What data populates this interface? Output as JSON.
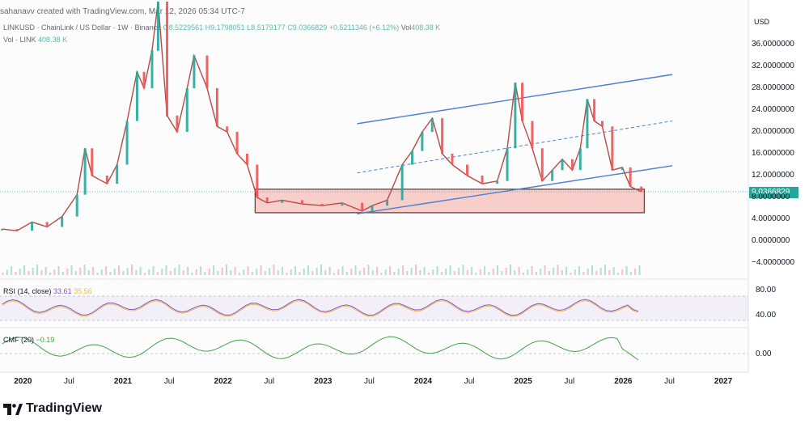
{
  "header": {
    "created": "sahanavv created with TradingView.com, Mar 12, 2026 05:34 UTC-7",
    "symbol_line": "LINKUSD · ChainLink / US Dollar · 1W · Binance",
    "ohlc": "O8.5229561  H9.1798051  L8.5179177  C9.0366829  +0.5211346 (+6.12%)",
    "vol_line_label": "Vol",
    "vol_line_value": "408.38 K",
    "vol_label": "Vol · LINK",
    "vol_value": "408.38 K"
  },
  "axis_currency": "USD",
  "current_price_label": "9.0366829",
  "rsi": {
    "label": "RSI (14, close)",
    "value1": "33.61",
    "value2": "35.56",
    "ticks": [
      "80.00",
      "40.00"
    ]
  },
  "cmf": {
    "label": "CMF (20)",
    "value": "−0.19",
    "ticks": [
      "0.00"
    ]
  },
  "brand": "TradingView",
  "colors": {
    "up": "#26a69a",
    "down": "#ef5350",
    "channel": "#4a7fd4",
    "zone_fill": "#f7c6c1",
    "zone_border": "#5a1a1a",
    "rsi": "#7e57c2",
    "rsi_ma": "#f0b94c",
    "cmf": "#43a047"
  },
  "chart_data": {
    "type": "line",
    "title": "LINKUSD · ChainLink / US Dollar · 1W · Binance",
    "y_axis_ticks": [
      "36.0000000",
      "32.0000000",
      "28.0000000",
      "24.0000000",
      "20.0000000",
      "16.0000000",
      "12.0000000",
      "8.0000000",
      "4.0000000",
      "0.0000000",
      "−4.0000000"
    ],
    "ylim": [
      -5,
      38
    ],
    "x_axis_ticks": [
      "2020",
      "Jul",
      "2021",
      "Jul",
      "2022",
      "Jul",
      "2023",
      "Jul",
      "2024",
      "Jul",
      "2025",
      "Jul",
      "2026",
      "Jul",
      "2027"
    ],
    "series": [
      {
        "name": "LINKUSD",
        "x": [
          2019.8,
          2019.95,
          2020.1,
          2020.25,
          2020.4,
          2020.55,
          2020.63,
          2020.7,
          2020.85,
          2020.95,
          2021.05,
          2021.15,
          2021.22,
          2021.3,
          2021.36,
          2021.45,
          2021.55,
          2021.65,
          2021.72,
          2021.85,
          2021.95,
          2022.05,
          2022.15,
          2022.25,
          2022.35,
          2022.45,
          2022.6,
          2022.8,
          2023.0,
          2023.2,
          2023.4,
          2023.5,
          2023.65,
          2023.8,
          2023.9,
          2024.0,
          2024.1,
          2024.2,
          2024.3,
          2024.45,
          2024.6,
          2024.75,
          2024.85,
          2024.93,
          2025.0,
          2025.1,
          2025.2,
          2025.3,
          2025.4,
          2025.5,
          2025.58,
          2025.65,
          2025.72,
          2025.8,
          2025.9,
          2026.0,
          2026.08,
          2026.19
        ],
        "values": [
          2.2,
          1.9,
          3.5,
          2.6,
          4.5,
          8.5,
          17.0,
          12.0,
          10.5,
          14.0,
          22.0,
          31.0,
          28.0,
          35.0,
          44.0,
          23.0,
          20.0,
          28.0,
          34.0,
          28.0,
          21.0,
          20.0,
          16.0,
          14.0,
          8.0,
          7.0,
          7.5,
          6.8,
          6.5,
          7.0,
          5.5,
          6.5,
          7.5,
          14.0,
          16.5,
          20.0,
          22.5,
          16.0,
          14.0,
          12.0,
          10.5,
          11.0,
          17.0,
          29.0,
          22.0,
          17.0,
          11.0,
          13.0,
          15.0,
          13.0,
          17.0,
          26.0,
          22.0,
          21.0,
          13.0,
          13.5,
          10.0,
          9.04
        ]
      }
    ],
    "volume_label": "Vol · LINK",
    "indicators": [
      {
        "name": "RSI (14, close)",
        "values": [
          33.61,
          35.56
        ]
      },
      {
        "name": "CMF (20)",
        "values": [
          -0.19
        ]
      }
    ],
    "grid": false,
    "legend": "top-left"
  }
}
